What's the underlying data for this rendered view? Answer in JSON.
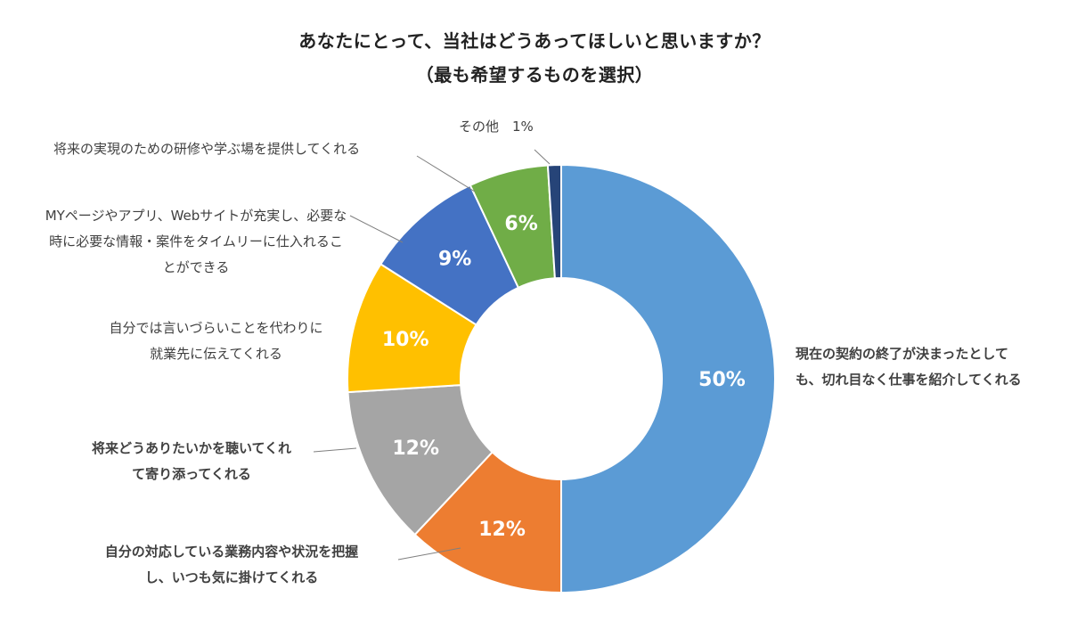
{
  "title_line1": "あなたにとって、当社はどうあってほしいと思いますか？",
  "title_line2": "（最も希望するものを選択）",
  "chart_data": {
    "type": "pie",
    "donut": true,
    "title": "あなたにとって、当社はどうあってほしいと思いますか？（最も希望するものを選択）",
    "slices": [
      {
        "label": "現在の契約の終了が決まったとしても、切れ目なく仕事を紹介してくれる",
        "value": 50,
        "display": "50%",
        "color": "#5b9bd5"
      },
      {
        "label": "自分の対応している業務内容や状況を把握し、いつも気に掛けてくれる",
        "value": 12,
        "display": "12%",
        "color": "#ed7d31"
      },
      {
        "label": "将来どうありたいかを聴いてくれて寄り添ってくれる",
        "value": 12,
        "display": "12%",
        "color": "#a5a5a5"
      },
      {
        "label": "自分では言いづらいことを代わりに就業先に伝えてくれる",
        "value": 10,
        "display": "10%",
        "color": "#ffc000"
      },
      {
        "label": "MYページやアプリ、Webサイトが充実し、必要な時に必要な情報・案件をタイムリーに仕入れることができる",
        "value": 9,
        "display": "9%",
        "color": "#4472c4"
      },
      {
        "label": "将来の実現のための研修や学ぶ場を提供してくれる",
        "value": 6,
        "display": "6%",
        "color": "#70ad47"
      },
      {
        "label": "その他",
        "value": 1,
        "display": "1%",
        "color": "#264478"
      }
    ]
  },
  "labels": {
    "s0": [
      "現在の契約の終了が決まったとして",
      "も、切れ目なく仕事を紹介してくれる"
    ],
    "s1": [
      "自分の対応している業務内容や状況を把握",
      "し、いつも気に掛けてくれる"
    ],
    "s2": [
      "将来どうありたいかを聴いてくれ",
      "て寄り添ってくれる"
    ],
    "s3": [
      "自分では言いづらいことを代わりに",
      "就業先に伝えてくれる"
    ],
    "s4": [
      "MYページやアプリ、Webサイトが充実し、必要な",
      "時に必要な情報・案件をタイムリーに仕入れるこ",
      "とができる"
    ],
    "s5": [
      "将来の実現のための研修や学ぶ場を提供してくれる"
    ],
    "s6": [
      "その他　1%"
    ]
  }
}
